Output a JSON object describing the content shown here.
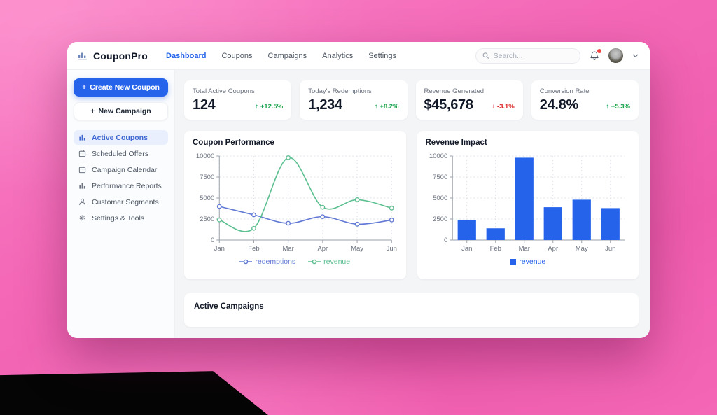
{
  "app": {
    "title": "CouponPro",
    "logo_icon": "bar-chart-logo-icon"
  },
  "nav": {
    "items": [
      {
        "label": "Dashboard",
        "active": true
      },
      {
        "label": "Coupons",
        "active": false
      },
      {
        "label": "Campaigns",
        "active": false
      },
      {
        "label": "Analytics",
        "active": false
      },
      {
        "label": "Settings",
        "active": false
      }
    ]
  },
  "header": {
    "search_placeholder": "Search...",
    "icons": [
      "search-icon",
      "bell-icon",
      "avatar",
      "chevron-down-icon"
    ],
    "notification_dot": true
  },
  "sidebar": {
    "create_button": "Create New Coupon",
    "campaign_button": "New Campaign",
    "items": [
      {
        "label": "Active Coupons",
        "icon": "bar-chart-icon",
        "active": true
      },
      {
        "label": "Scheduled Offers",
        "icon": "calendar-icon",
        "active": false
      },
      {
        "label": "Campaign Calendar",
        "icon": "calendar-icon",
        "active": false
      },
      {
        "label": "Performance Reports",
        "icon": "bar-chart-icon",
        "active": false
      },
      {
        "label": "Customer Segments",
        "icon": "user-icon",
        "active": false
      },
      {
        "label": "Settings & Tools",
        "icon": "gear-icon",
        "active": false
      }
    ]
  },
  "stats": [
    {
      "label": "Total Active Coupons",
      "value": "124",
      "arrow": "↑",
      "change": "+12.5%",
      "direction": "up"
    },
    {
      "label": "Today's Redemptions",
      "value": "1,234",
      "arrow": "↑",
      "change": "+8.2%",
      "direction": "up"
    },
    {
      "label": "Revenue Generated",
      "value": "$45,678",
      "arrow": "↓",
      "change": "-3.1%",
      "direction": "down"
    },
    {
      "label": "Conversion Rate",
      "value": "24.8%",
      "arrow": "↑",
      "change": "+5.3%",
      "direction": "up"
    }
  ],
  "sections": {
    "active_campaigns_title": "Active Campaigns"
  },
  "colors": {
    "accent_blue": "#2563eb",
    "positive_green": "#16a34a",
    "negative_red": "#dc2626",
    "background_pink": "#f265b5",
    "active_item_bg": "#e9effc"
  },
  "chart_data": [
    {
      "type": "line",
      "title": "Coupon Performance",
      "categories": [
        "Jan",
        "Feb",
        "Mar",
        "Apr",
        "May",
        "Jun"
      ],
      "series": [
        {
          "name": "redemptions",
          "color": "#6179d5",
          "values": [
            4000,
            3000,
            2000,
            2780,
            1890,
            2390
          ]
        },
        {
          "name": "revenue",
          "color": "#5cbf90",
          "values": [
            2400,
            1398,
            9800,
            3908,
            4800,
            3800
          ]
        }
      ],
      "ylim": [
        0,
        10000
      ],
      "yticks": [
        0,
        2500,
        5000,
        7500,
        10000
      ],
      "grid": true,
      "legend_position": "bottom",
      "marker": "open-circle"
    },
    {
      "type": "bar",
      "title": "Revenue Impact",
      "categories": [
        "Jan",
        "Feb",
        "Mar",
        "Apr",
        "May",
        "Jun"
      ],
      "series": [
        {
          "name": "revenue",
          "color": "#2563eb",
          "values": [
            2400,
            1398,
            9800,
            3908,
            4800,
            3800
          ]
        }
      ],
      "ylim": [
        0,
        10000
      ],
      "yticks": [
        0,
        2500,
        5000,
        7500,
        10000
      ],
      "grid": true,
      "legend_position": "bottom"
    }
  ]
}
